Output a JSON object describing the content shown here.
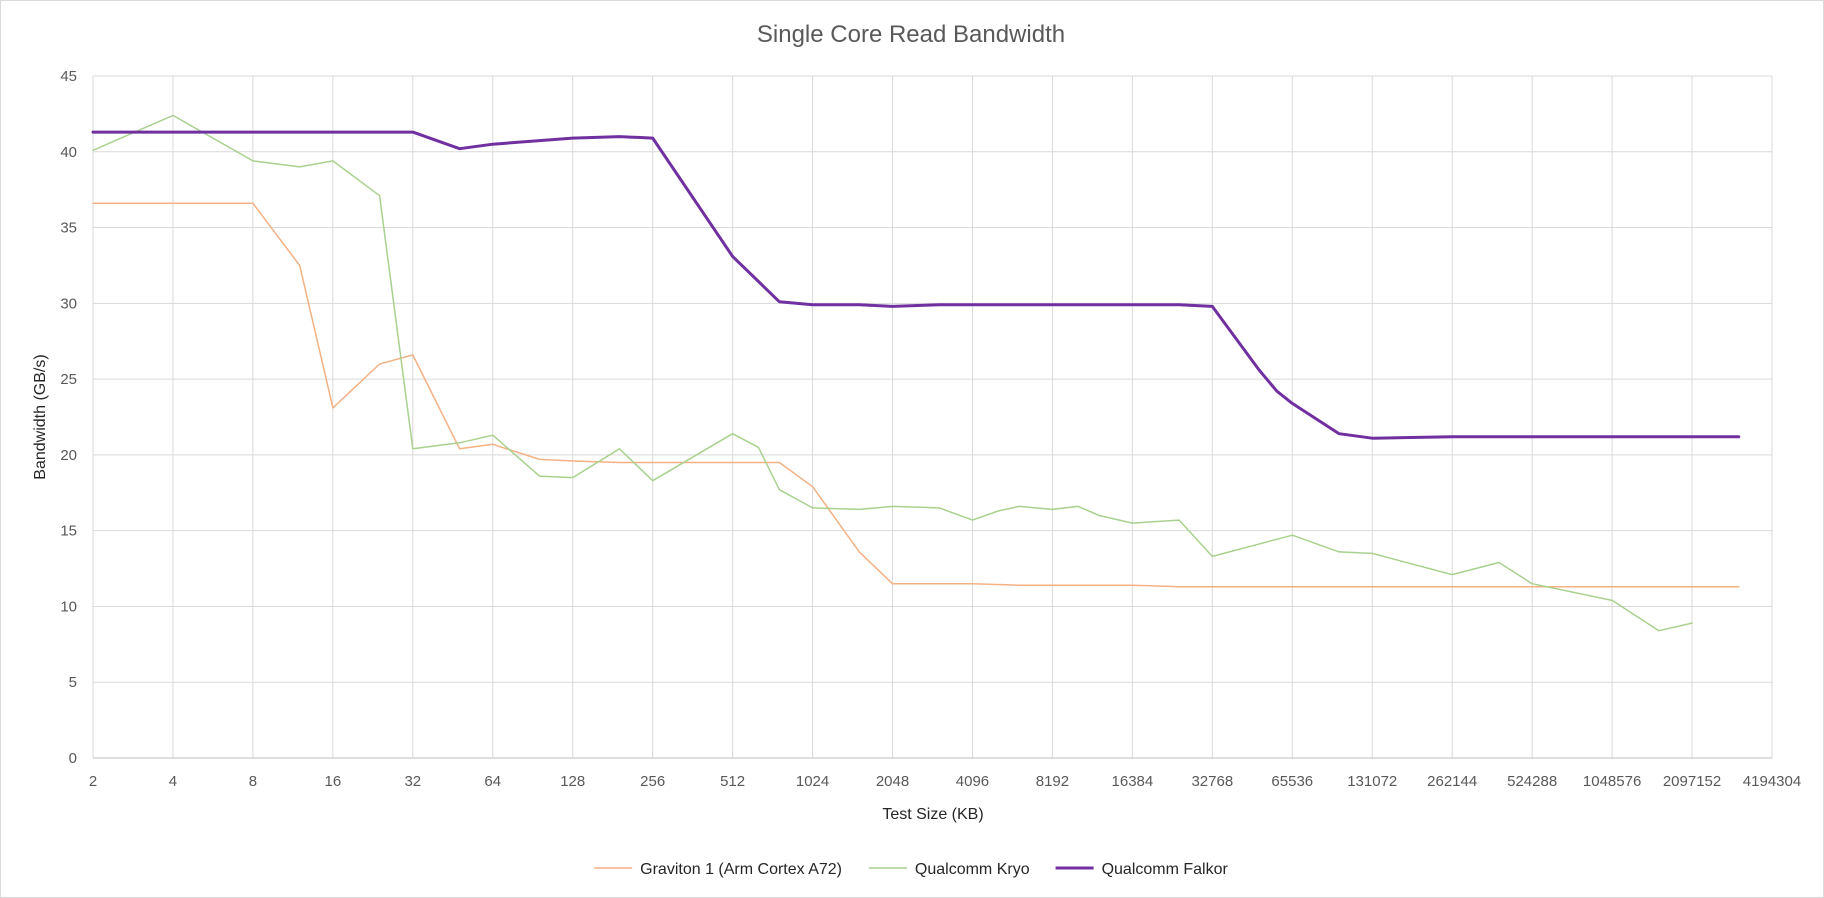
{
  "chart_data": {
    "type": "line",
    "title": "Single Core Read Bandwidth",
    "xlabel": "Test Size (KB)",
    "ylabel": "Bandwidth (GB/s)",
    "x_scale": "log2",
    "xlim": [
      2,
      4194304
    ],
    "ylim": [
      0,
      45
    ],
    "x_ticks": [
      2,
      4,
      8,
      16,
      32,
      64,
      128,
      256,
      512,
      1024,
      2048,
      4096,
      8192,
      16384,
      32768,
      65536,
      131072,
      262144,
      524288,
      1048576,
      2097152,
      4194304
    ],
    "y_ticks": [
      0,
      5,
      10,
      15,
      20,
      25,
      30,
      35,
      40,
      45
    ],
    "grid": true,
    "legend_position": "bottom",
    "series": [
      {
        "name": "Graviton 1 (Arm Cortex A72)",
        "color": "#f4b183",
        "width": 1.5,
        "points": [
          [
            2,
            36.6
          ],
          [
            8,
            36.6
          ],
          [
            12,
            32.5
          ],
          [
            16,
            23.1
          ],
          [
            24,
            26.0
          ],
          [
            32,
            26.6
          ],
          [
            48,
            20.4
          ],
          [
            64,
            20.7
          ],
          [
            96,
            19.7
          ],
          [
            128,
            19.6
          ],
          [
            192,
            19.5
          ],
          [
            256,
            19.5
          ],
          [
            512,
            19.5
          ],
          [
            768,
            19.5
          ],
          [
            1024,
            17.9
          ],
          [
            1536,
            13.6
          ],
          [
            2048,
            11.5
          ],
          [
            4096,
            11.5
          ],
          [
            6144,
            11.4
          ],
          [
            8192,
            11.4
          ],
          [
            16384,
            11.4
          ],
          [
            24576,
            11.3
          ],
          [
            32768,
            11.3
          ],
          [
            65536,
            11.3
          ],
          [
            131072,
            11.3
          ],
          [
            262144,
            11.3
          ],
          [
            524288,
            11.3
          ],
          [
            1048576,
            11.3
          ],
          [
            2097152,
            11.3
          ],
          [
            3145728,
            11.3
          ]
        ]
      },
      {
        "name": "Qualcomm Kryo",
        "color": "#a9d18e",
        "width": 1.5,
        "points": [
          [
            2,
            40.1
          ],
          [
            4,
            42.4
          ],
          [
            8,
            39.4
          ],
          [
            12,
            39.0
          ],
          [
            16,
            39.4
          ],
          [
            24,
            37.1
          ],
          [
            32,
            20.4
          ],
          [
            48,
            20.8
          ],
          [
            64,
            21.3
          ],
          [
            96,
            18.6
          ],
          [
            128,
            18.5
          ],
          [
            192,
            20.4
          ],
          [
            256,
            18.3
          ],
          [
            512,
            21.4
          ],
          [
            640,
            20.5
          ],
          [
            768,
            17.7
          ],
          [
            1024,
            16.5
          ],
          [
            1536,
            16.4
          ],
          [
            2048,
            16.6
          ],
          [
            3072,
            16.5
          ],
          [
            4096,
            15.7
          ],
          [
            5120,
            16.3
          ],
          [
            6144,
            16.6
          ],
          [
            8192,
            16.4
          ],
          [
            10240,
            16.6
          ],
          [
            12288,
            16.0
          ],
          [
            16384,
            15.5
          ],
          [
            24576,
            15.7
          ],
          [
            32768,
            13.3
          ],
          [
            65536,
            14.7
          ],
          [
            98304,
            13.6
          ],
          [
            131072,
            13.5
          ],
          [
            262144,
            12.1
          ],
          [
            393216,
            12.9
          ],
          [
            524288,
            11.5
          ],
          [
            1048576,
            10.4
          ],
          [
            1572864,
            8.4
          ],
          [
            2097152,
            8.9
          ]
        ]
      },
      {
        "name": "Qualcomm Falkor",
        "color": "#7030a0",
        "width": 3,
        "points": [
          [
            2,
            41.3
          ],
          [
            32,
            41.3
          ],
          [
            48,
            40.2
          ],
          [
            64,
            40.5
          ],
          [
            128,
            40.9
          ],
          [
            192,
            41.0
          ],
          [
            256,
            40.9
          ],
          [
            512,
            33.1
          ],
          [
            768,
            30.1
          ],
          [
            1024,
            29.9
          ],
          [
            1536,
            29.9
          ],
          [
            2048,
            29.8
          ],
          [
            3072,
            29.9
          ],
          [
            8192,
            29.9
          ],
          [
            16384,
            29.9
          ],
          [
            24576,
            29.9
          ],
          [
            32768,
            29.8
          ],
          [
            49152,
            25.6
          ],
          [
            57344,
            24.2
          ],
          [
            65536,
            23.4
          ],
          [
            98304,
            21.4
          ],
          [
            131072,
            21.1
          ],
          [
            262144,
            21.2
          ],
          [
            524288,
            21.2
          ],
          [
            1048576,
            21.2
          ],
          [
            2097152,
            21.2
          ],
          [
            3145728,
            21.2
          ]
        ]
      }
    ]
  }
}
